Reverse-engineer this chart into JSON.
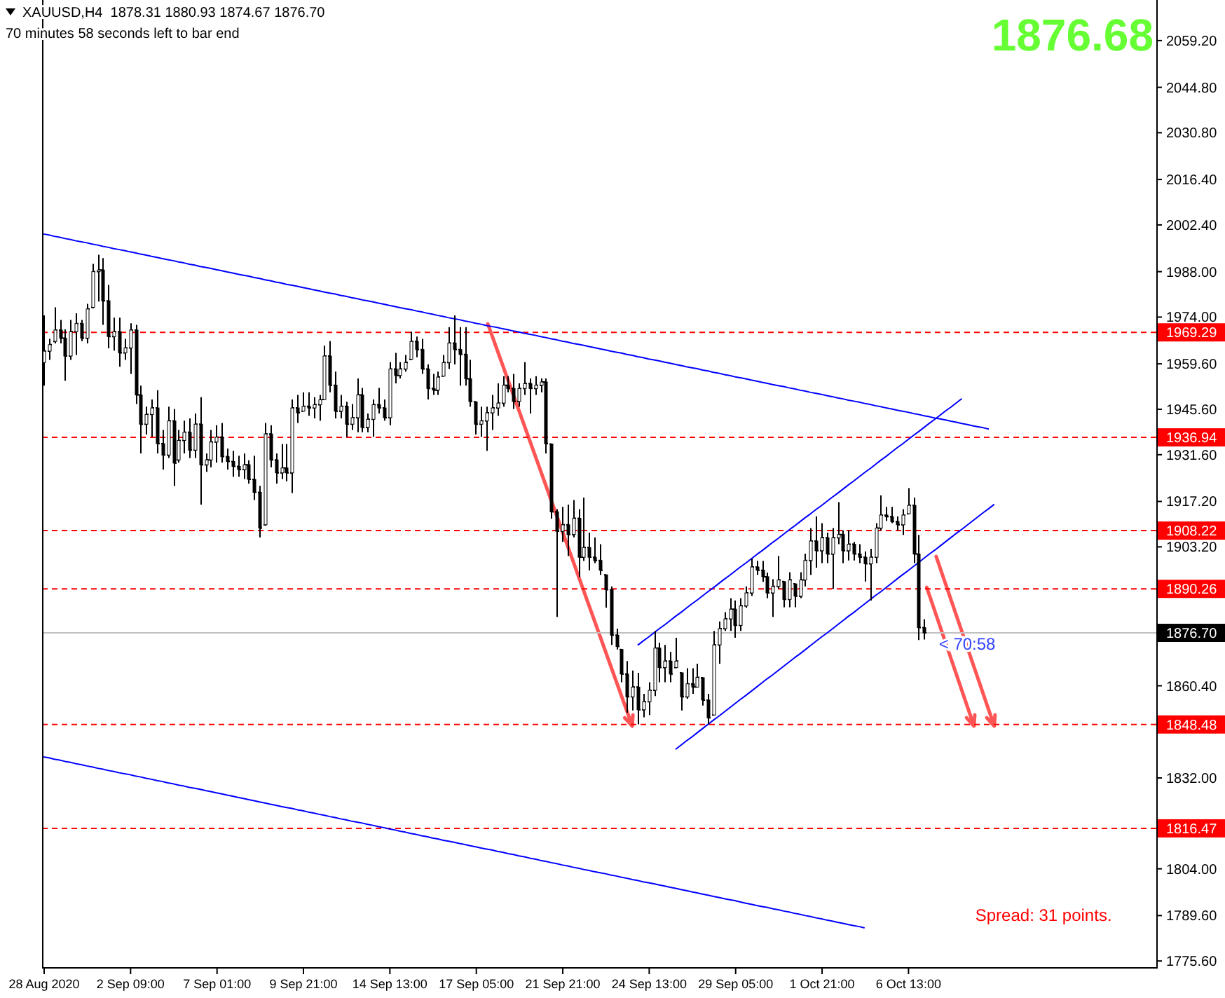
{
  "chart_data": {
    "type": "candlestick",
    "title": "XAUUSD,H4  1878.31 1880.93 1874.67 1876.70",
    "subtitle": "70 minutes 58 seconds left to bar end",
    "color": "#000000",
    "categories": [
      "28 Aug 2020",
      null,
      null,
      null,
      null,
      null,
      null,
      null,
      null,
      null,
      null,
      null,
      null,
      null,
      null,
      null,
      "2 Sep 09:00",
      null,
      null,
      null,
      null,
      null,
      null,
      null,
      null,
      null,
      null,
      null,
      null,
      null,
      null,
      null,
      "7 Sep 01:00",
      null,
      null,
      null,
      null,
      null,
      null,
      null,
      null,
      null,
      null,
      null,
      null,
      null,
      null,
      null,
      "9 Sep 21:00",
      null,
      null,
      null,
      null,
      null,
      null,
      null,
      null,
      null,
      null,
      null,
      null,
      null,
      null,
      null,
      "14 Sep 13:00",
      null,
      null,
      null,
      null,
      null,
      null,
      null,
      null,
      null,
      null,
      null,
      null,
      null,
      null,
      null,
      "17 Sep 05:00",
      null,
      null,
      null,
      null,
      null,
      null,
      null,
      null,
      null,
      null,
      null,
      null,
      null,
      null,
      null,
      "21 Sep 21:00",
      null,
      null,
      null,
      null,
      null,
      null,
      null,
      null,
      null,
      null,
      null,
      null,
      null,
      null,
      null,
      "24 Sep 13:00",
      null,
      null,
      null,
      null,
      null,
      null,
      null,
      null,
      null,
      null,
      null,
      null,
      null,
      null,
      null,
      "29 Sep 05:00",
      null,
      null,
      null,
      null,
      null,
      null,
      null,
      null,
      null,
      null,
      null,
      null,
      null,
      null,
      null,
      "1 Oct 21:00",
      null,
      null,
      null,
      null,
      null,
      null,
      null,
      null,
      null,
      null,
      null,
      null,
      null,
      null,
      null,
      "6 Oct 13:00",
      null,
      null,
      null,
      null,
      null,
      null,
      null,
      null,
      null,
      null,
      null,
      null,
      null,
      null,
      null,
      null,
      null,
      null,
      null,
      null,
      null,
      null,
      null,
      null,
      null,
      null,
      null,
      null,
      null,
      null,
      null,
      null,
      null,
      null,
      null,
      null,
      null,
      null,
      null,
      null,
      null,
      null,
      null,
      null,
      null,
      null
    ],
    "ohlc": [
      [
        1960,
        1974.5,
        1952.9,
        1963.5
      ],
      [
        1963.5,
        1967.3,
        1960.8,
        1965.5
      ],
      [
        1966.5,
        1977,
        1965.9,
        1970
      ],
      [
        1970,
        1973.1,
        1965.9,
        1967.5
      ],
      [
        1967.5,
        1970.2,
        1954.4,
        1962
      ],
      [
        1962,
        1973.1,
        1960.8,
        1969.5
      ],
      [
        1969.5,
        1975.2,
        1962.3,
        1972
      ],
      [
        1972,
        1973.1,
        1966.6,
        1967.5
      ],
      [
        1967.5,
        1978.1,
        1965.9,
        1976.5
      ],
      [
        1977,
        1990.4,
        1976.7,
        1988
      ],
      [
        1988,
        1993.2,
        1978.8,
        1988.5
      ],
      [
        1988.5,
        1992.2,
        1971.6,
        1979
      ],
      [
        1979,
        1983.9,
        1964.4,
        1968
      ],
      [
        1968,
        1973.8,
        1963.7,
        1969.5
      ],
      [
        1969.5,
        1973.8,
        1958.7,
        1963
      ],
      [
        1963,
        1967.3,
        1960.8,
        1964.5
      ],
      [
        1964.5,
        1972.1,
        1956.5,
        1970
      ],
      [
        1970,
        1971.6,
        1947.2,
        1950
      ],
      [
        1950,
        1952.9,
        1932,
        1941
      ],
      [
        1941,
        1946.4,
        1937.8,
        1944
      ],
      [
        1944,
        1948.6,
        1937.1,
        1946
      ],
      [
        1946,
        1951.5,
        1932,
        1935
      ],
      [
        1935,
        1939.2,
        1927,
        1931.5
      ],
      [
        1931.5,
        1946.4,
        1930.6,
        1942
      ],
      [
        1942,
        1945.7,
        1922,
        1929
      ],
      [
        1930,
        1939.2,
        1929.2,
        1936
      ],
      [
        1936,
        1942.1,
        1932,
        1938.5
      ],
      [
        1938.5,
        1942.8,
        1930.6,
        1933
      ],
      [
        1933,
        1944.3,
        1930.6,
        1941
      ],
      [
        1941,
        1949.3,
        1916.2,
        1928.5
      ],
      [
        1928.5,
        1932,
        1926.3,
        1930
      ],
      [
        1930,
        1939.2,
        1927.7,
        1935.5
      ],
      [
        1935.5,
        1940.7,
        1929.2,
        1937
      ],
      [
        1937,
        1941.4,
        1929.2,
        1931
      ],
      [
        1931,
        1933.5,
        1927,
        1929.5
      ],
      [
        1929.5,
        1932.8,
        1924.8,
        1928
      ],
      [
        1928,
        1931.3,
        1924.8,
        1927
      ],
      [
        1927,
        1932,
        1924.1,
        1928.5
      ],
      [
        1928.5,
        1929.9,
        1922.7,
        1924
      ],
      [
        1924,
        1931.3,
        1917.6,
        1920
      ],
      [
        1920,
        1922,
        1906.1,
        1909
      ],
      [
        1910,
        1941.4,
        1909.7,
        1938
      ],
      [
        1938,
        1940.7,
        1927.7,
        1930
      ],
      [
        1930,
        1932,
        1922.7,
        1926
      ],
      [
        1926,
        1934.9,
        1924.1,
        1927.5
      ],
      [
        1927.5,
        1934.9,
        1923.4,
        1926
      ],
      [
        1926,
        1948.6,
        1919.8,
        1946
      ],
      [
        1946,
        1950,
        1941.4,
        1944.5
      ],
      [
        1945,
        1950.8,
        1945,
        1946.5
      ],
      [
        1946.5,
        1950.8,
        1943.6,
        1946
      ],
      [
        1946,
        1949.3,
        1942.8,
        1947
      ],
      [
        1947,
        1950,
        1942.1,
        1948.5
      ],
      [
        1948.6,
        1965.2,
        1948.6,
        1962
      ],
      [
        1962,
        1966.6,
        1950.8,
        1953
      ],
      [
        1953,
        1957.2,
        1942.8,
        1945
      ],
      [
        1945,
        1950,
        1942.8,
        1946.5
      ],
      [
        1946.5,
        1947.9,
        1937.1,
        1941
      ],
      [
        1941,
        1947.2,
        1939.2,
        1943
      ],
      [
        1943,
        1955.1,
        1938.5,
        1950
      ],
      [
        1950,
        1952.2,
        1938.5,
        1940
      ],
      [
        1940,
        1944.3,
        1938.5,
        1942.5
      ],
      [
        1942.5,
        1948.6,
        1937.1,
        1947
      ],
      [
        1947,
        1952.2,
        1944.3,
        1946
      ],
      [
        1946,
        1948.6,
        1942.1,
        1943
      ],
      [
        1943,
        1960.1,
        1940.7,
        1958
      ],
      [
        1958,
        1963,
        1953.6,
        1956
      ],
      [
        1956,
        1960.1,
        1955.1,
        1958
      ],
      [
        1958,
        1962.3,
        1957.2,
        1960
      ],
      [
        1961,
        1969.5,
        1960.8,
        1966.5
      ],
      [
        1966.5,
        1968,
        1961.6,
        1964
      ],
      [
        1964,
        1967.3,
        1956.5,
        1958
      ],
      [
        1958,
        1959.4,
        1948.6,
        1952
      ],
      [
        1952,
        1956.5,
        1950,
        1951.5
      ],
      [
        1951.5,
        1957.2,
        1950,
        1955.5
      ],
      [
        1955.8,
        1962.3,
        1955.8,
        1960
      ],
      [
        1960,
        1970.9,
        1958,
        1966
      ],
      [
        1966,
        1974.5,
        1959.4,
        1964
      ],
      [
        1964,
        1970.9,
        1952.9,
        1962.5
      ],
      [
        1962.5,
        1970.9,
        1952.9,
        1955
      ],
      [
        1955,
        1960.8,
        1946.4,
        1948
      ],
      [
        1947.9,
        1947.9,
        1937.8,
        1941
      ],
      [
        1941,
        1946.4,
        1937.1,
        1942
      ],
      [
        1942,
        1946.4,
        1932.8,
        1944.5
      ],
      [
        1944.5,
        1950,
        1939.2,
        1946
      ],
      [
        1946,
        1953.6,
        1943.6,
        1947.5
      ],
      [
        1947.5,
        1955.8,
        1946.4,
        1953
      ],
      [
        1953,
        1955.8,
        1950.8,
        1952
      ],
      [
        1952,
        1956.5,
        1945.7,
        1948
      ],
      [
        1948,
        1953.6,
        1946.4,
        1952
      ],
      [
        1952,
        1960.1,
        1950,
        1953.5
      ],
      [
        1953.5,
        1955.1,
        1944.3,
        1952
      ],
      [
        1952,
        1955.8,
        1950,
        1953
      ],
      [
        1953,
        1955.1,
        1950.8,
        1954
      ],
      [
        1954,
        1955.1,
        1932,
        1935
      ],
      [
        1934.9,
        1934.9,
        1911.9,
        1914
      ],
      [
        1914,
        1914.8,
        1881.6,
        1908
      ],
      [
        1908,
        1915.5,
        1904.7,
        1910
      ],
      [
        1910,
        1916.2,
        1900.4,
        1907
      ],
      [
        1907,
        1917.6,
        1906.1,
        1912
      ],
      [
        1912,
        1914.8,
        1893.9,
        1900
      ],
      [
        1900,
        1918.4,
        1898.9,
        1903
      ],
      [
        1903,
        1907.6,
        1896,
        1900
      ],
      [
        1900,
        1906.1,
        1898.2,
        1899
      ],
      [
        1899,
        1904,
        1894.6,
        1896
      ],
      [
        1894.6,
        1894.6,
        1884.5,
        1890
      ],
      [
        1890,
        1891,
        1873,
        1876
      ],
      [
        1876,
        1878,
        1871.6,
        1872.5
      ],
      [
        1871.6,
        1871.6,
        1861.5,
        1864
      ],
      [
        1864,
        1868,
        1852.1,
        1857
      ],
      [
        1857,
        1865.1,
        1852.8,
        1860
      ],
      [
        1860,
        1864.4,
        1848.5,
        1853
      ],
      [
        1853,
        1857.9,
        1850.7,
        1855.5
      ],
      [
        1855.5,
        1861.5,
        1851.4,
        1859
      ],
      [
        1859,
        1877.3,
        1857.2,
        1872
      ],
      [
        1872,
        1873.7,
        1861.5,
        1866
      ],
      [
        1866,
        1873,
        1861.5,
        1868
      ],
      [
        1868,
        1870.8,
        1861.5,
        1864
      ],
      [
        1866,
        1875.2,
        1865.8,
        1868
      ],
      [
        1864.4,
        1864.4,
        1852.8,
        1857
      ],
      [
        1857,
        1865.8,
        1856.4,
        1861
      ],
      [
        1861,
        1865.8,
        1857.9,
        1860
      ],
      [
        1860,
        1867.2,
        1860,
        1863
      ],
      [
        1862.9,
        1862.9,
        1854.3,
        1856
      ],
      [
        1856,
        1857.9,
        1848.5,
        1850.5
      ],
      [
        1851.4,
        1877.3,
        1851.4,
        1873
      ],
      [
        1873,
        1880.2,
        1867.2,
        1878
      ],
      [
        1878,
        1883.1,
        1877.3,
        1881
      ],
      [
        1881,
        1887.4,
        1877.3,
        1884
      ],
      [
        1884,
        1886.7,
        1875.2,
        1879
      ],
      [
        1879,
        1887.4,
        1877.3,
        1885
      ],
      [
        1885,
        1891,
        1884.5,
        1889
      ],
      [
        1889,
        1899.6,
        1888.1,
        1897
      ],
      [
        1897,
        1898.9,
        1894.6,
        1896
      ],
      [
        1896,
        1898.9,
        1892.4,
        1894
      ],
      [
        1894,
        1895.3,
        1887.4,
        1889
      ],
      [
        1889,
        1893.2,
        1881.6,
        1891
      ],
      [
        1891,
        1900.4,
        1890.3,
        1893
      ],
      [
        1892.5,
        1892.5,
        1884.6,
        1887
      ],
      [
        1887,
        1895.4,
        1884.6,
        1893
      ],
      [
        1891.8,
        1891.8,
        1884.6,
        1888
      ],
      [
        1888,
        1895.4,
        1887.4,
        1893
      ],
      [
        1893,
        1901.1,
        1891,
        1899
      ],
      [
        1899,
        1909,
        1894.6,
        1905
      ],
      [
        1905,
        1912.6,
        1896.8,
        1902
      ],
      [
        1902,
        1910.5,
        1898.2,
        1906
      ],
      [
        1906,
        1907.6,
        1898.2,
        1901
      ],
      [
        1901,
        1909,
        1890.3,
        1906
      ],
      [
        1906,
        1917,
        1904,
        1907
      ],
      [
        1907,
        1908.3,
        1898.2,
        1902
      ],
      [
        1902,
        1908.3,
        1899,
        1904
      ],
      [
        1904,
        1904.7,
        1899,
        1901
      ],
      [
        1901,
        1904,
        1898.2,
        1900
      ],
      [
        1900,
        1901.8,
        1892.5,
        1898
      ],
      [
        1898,
        1902.6,
        1886.7,
        1900
      ],
      [
        1900,
        1910.5,
        1898.2,
        1909
      ],
      [
        1909,
        1919.1,
        1908.3,
        1913
      ],
      [
        1913,
        1915.5,
        1911.2,
        1912.5
      ],
      [
        1912.5,
        1915.5,
        1910.5,
        1911
      ],
      [
        1911,
        1912.6,
        1908.3,
        1910
      ],
      [
        1910,
        1914.8,
        1906.9,
        1913
      ],
      [
        1913.4,
        1921.3,
        1913.4,
        1916
      ],
      [
        1916,
        1918.4,
        1898.2,
        1901
      ],
      [
        1901,
        1906.9,
        1874.5,
        1878.3
      ],
      [
        1878.31,
        1880.93,
        1874.67,
        1876.7
      ],
      null,
      null,
      null,
      null,
      null,
      null,
      null,
      null,
      null,
      null,
      null,
      null,
      null,
      null,
      null,
      null,
      null,
      null,
      null,
      null,
      null,
      null,
      null,
      null,
      null,
      null,
      null,
      null,
      null,
      null,
      null,
      null,
      null,
      null,
      null,
      null,
      null,
      null,
      null,
      null,
      null,
      null,
      null
    ],
    "series": [
      {
        "type": "line",
        "color": "#0000ff",
        "values": [
          1999.6,
          1999.3,
          1998.9,
          1998.6,
          1998.2,
          1997.9,
          1997.5,
          1997.2,
          1996.9,
          1996.5,
          1996.2,
          1995.8,
          1995.5,
          1995.1,
          1994.8,
          1994.5,
          1994.1,
          1993.8,
          1993.4,
          1993.1,
          1992.7,
          1992.4,
          1992.0,
          1991.7,
          1991.4,
          1991.0,
          1990.7,
          1990.3,
          1990.0,
          1989.6,
          1989.3,
          1989.0,
          1988.6,
          1988.3,
          1987.9,
          1987.6,
          1987.2,
          1986.9,
          1986.6,
          1986.2,
          1985.9,
          1985.5,
          1985.2,
          1984.8,
          1984.5,
          1984.1,
          1983.8,
          1983.5,
          1983.1,
          1982.8,
          1982.4,
          1982.1,
          1981.7,
          1981.4,
          1981.1,
          1980.7,
          1980.4,
          1980.0,
          1979.7,
          1979.3,
          1979.0,
          1978.7,
          1978.3,
          1978.0,
          1977.6,
          1977.3,
          1976.9,
          1976.6,
          1976.3,
          1975.9,
          1975.6,
          1975.2,
          1974.9,
          1974.5,
          1974.2,
          1973.8,
          1973.5,
          1973.2,
          1972.8,
          1972.5,
          1972.1,
          1971.8,
          1971.4,
          1971.1,
          1970.8,
          1970.4,
          1970.1,
          1969.7,
          1969.4,
          1969.0,
          1968.7,
          1968.4,
          1968.0,
          1967.7,
          1967.3,
          1967.0,
          1966.6,
          1966.3,
          1965.9,
          1965.6,
          1965.3,
          1964.9,
          1964.6,
          1964.2,
          1963.9,
          1963.5,
          1963.2,
          1962.9,
          1962.5,
          1962.2,
          1961.8,
          1961.5,
          1961.1,
          1960.8,
          1960.5,
          1960.1,
          1959.8,
          1959.4,
          1959.1,
          1958.7,
          1958.4,
          1958.1,
          1957.7,
          1957.4,
          1957.0,
          1956.7,
          1956.3,
          1956.0,
          1955.6,
          1955.3,
          1955.0,
          1954.6,
          1954.3,
          1953.9,
          1953.6,
          1953.2,
          1952.9,
          1952.6,
          1952.2,
          1951.9,
          1951.5,
          1951.2,
          1950.8,
          1950.5,
          1950.2,
          1949.8,
          1949.5,
          1949.1,
          1948.8,
          1948.4,
          1948.1,
          1947.8,
          1947.4,
          1947.1,
          1946.7,
          1946.4,
          1946.0,
          1945.7,
          1945.3,
          1945.0,
          1944.7,
          1944.3,
          1944.0,
          1943.6,
          1943.3,
          1942.9,
          1942.6,
          1942.3,
          1941.9,
          1941.6,
          1941.2,
          1940.9,
          1940.5,
          1940.2,
          1939.9,
          1939.5,
          null,
          null,
          null,
          null,
          null,
          null,
          null,
          null,
          null,
          null,
          null,
          null,
          null,
          null,
          null,
          null,
          null,
          null,
          null,
          null,
          null,
          null,
          null,
          null,
          null,
          null,
          null,
          null,
          null,
          null,
          null
        ]
      },
      {
        "type": "line",
        "color": "#0000ff",
        "values": [
          1838.5,
          1838.2,
          1837.8,
          1837.5,
          1837.1,
          1836.8,
          1836.4,
          1836.1,
          1835.7,
          1835.4,
          1835.0,
          1834.7,
          1834.3,
          1834.0,
          1833.6,
          1833.3,
          1833.0,
          1832.6,
          1832.3,
          1831.9,
          1831.6,
          1831.2,
          1830.9,
          1830.5,
          1830.2,
          1829.8,
          1829.5,
          1829.1,
          1828.8,
          1828.5,
          1828.1,
          1827.8,
          1827.4,
          1827.1,
          1826.7,
          1826.4,
          1826.0,
          1825.7,
          1825.3,
          1825.0,
          1824.6,
          1824.3,
          1823.9,
          1823.6,
          1823.2,
          1822.9,
          1822.6,
          1822.2,
          1821.9,
          1821.5,
          1821.2,
          1820.8,
          1820.5,
          1820.1,
          1819.8,
          1819.4,
          1819.1,
          1818.7,
          1818.4,
          1818.1,
          1817.7,
          1817.4,
          1817.0,
          1816.7,
          1816.3,
          1816.0,
          1815.6,
          1815.3,
          1814.9,
          1814.6,
          1814.2,
          1813.9,
          1813.5,
          1813.2,
          1812.8,
          1812.5,
          1812.2,
          1811.8,
          1811.5,
          1811.1,
          1810.8,
          1810.4,
          1810.1,
          1809.8,
          1809.4,
          1809.1,
          1808.7,
          1808.4,
          1808.0,
          1807.7,
          1807.3,
          1807.0,
          1806.6,
          1806.3,
          1805.9,
          1805.6,
          1805.2,
          1804.9,
          1804.5,
          1804.2,
          1803.8,
          1803.5,
          1803.1,
          1802.8,
          1802.5,
          1802.1,
          1801.8,
          1801.4,
          1801.1,
          1800.7,
          1800.4,
          1800.0,
          1799.7,
          1799.4,
          1799.0,
          1798.7,
          1798.3,
          1798.0,
          1797.6,
          1797.3,
          1796.9,
          1796.6,
          1796.2,
          1795.9,
          1795.5,
          1795.2,
          1794.8,
          1794.5,
          1794.2,
          1793.8,
          1793.4,
          1793.1,
          1792.7,
          1792.4,
          1792.1,
          1791.7,
          1791.4,
          1791.0,
          1790.7,
          1790.3,
          1790.0,
          1789.6,
          1789.3,
          1788.9,
          1788.6,
          1788.2,
          1787.9,
          1787.5,
          1787.2,
          1786.8,
          1786.5,
          1786.2,
          1785.8,
          null,
          null,
          null,
          null,
          null,
          null,
          null,
          null,
          null,
          null,
          null,
          null,
          null,
          null,
          null,
          null,
          null,
          null,
          null,
          null,
          null,
          null,
          null,
          null,
          null,
          null,
          null,
          null,
          null,
          null,
          null,
          null,
          null,
          null,
          null,
          null,
          null,
          null,
          null,
          null,
          null,
          null,
          null,
          null,
          null,
          null,
          null,
          null,
          null,
          null,
          null,
          null,
          null,
          null
        ]
      },
      {
        "type": "line",
        "color": "#0000ff",
        "values": [
          null,
          null,
          null,
          null,
          null,
          null,
          null,
          null,
          null,
          null,
          null,
          null,
          null,
          null,
          null,
          null,
          null,
          null,
          null,
          null,
          null,
          null,
          null,
          null,
          null,
          null,
          null,
          null,
          null,
          null,
          null,
          null,
          null,
          null,
          null,
          null,
          null,
          null,
          null,
          null,
          null,
          null,
          null,
          null,
          null,
          null,
          null,
          null,
          null,
          null,
          null,
          null,
          null,
          null,
          null,
          null,
          null,
          null,
          null,
          null,
          null,
          null,
          null,
          null,
          null,
          null,
          null,
          null,
          null,
          null,
          null,
          null,
          null,
          null,
          null,
          null,
          null,
          null,
          null,
          null,
          null,
          null,
          null,
          null,
          null,
          null,
          null,
          null,
          null,
          null,
          null,
          null,
          null,
          null,
          null,
          null,
          null,
          null,
          null,
          null,
          null,
          null,
          null,
          null,
          null,
          null,
          null,
          null,
          null,
          null,
          1872.9,
          1874.2,
          1875.4,
          1876.7,
          1878.0,
          1879.2,
          1880.5,
          1881.8,
          1883.0,
          1884.3,
          1885.6,
          1886.8,
          1888.1,
          1889.4,
          1890.6,
          1891.9,
          1893.2,
          1894.4,
          1895.7,
          1897.0,
          1898.2,
          1899.5,
          1900.8,
          1902.0,
          1903.3,
          1904.6,
          1905.8,
          1907.1,
          1908.4,
          1909.6,
          1910.9,
          1912.2,
          1913.4,
          1914.7,
          1915.9,
          1917.2,
          1918.5,
          1919.7,
          1921.0,
          1922.3,
          1923.5,
          1924.8,
          1926.1,
          1927.3,
          1928.6,
          1929.9,
          1931.1,
          1932.4,
          1933.7,
          1934.9,
          1936.2,
          1937.5,
          1938.7,
          1940.0,
          1941.3,
          1942.5,
          1943.8,
          1945.1,
          1946.3,
          1947.6,
          1948.9,
          null,
          null,
          null,
          null,
          null,
          null,
          null,
          null,
          null,
          null,
          null,
          null,
          null,
          null,
          null,
          null,
          null,
          null,
          null,
          null,
          null,
          null,
          null,
          null,
          null,
          null,
          null,
          null,
          null,
          null,
          null,
          null,
          null,
          null,
          null,
          null
        ]
      },
      {
        "type": "line",
        "color": "#0000ff",
        "values": [
          null,
          null,
          null,
          null,
          null,
          null,
          null,
          null,
          null,
          null,
          null,
          null,
          null,
          null,
          null,
          null,
          null,
          null,
          null,
          null,
          null,
          null,
          null,
          null,
          null,
          null,
          null,
          null,
          null,
          null,
          null,
          null,
          null,
          null,
          null,
          null,
          null,
          null,
          null,
          null,
          null,
          null,
          null,
          null,
          null,
          null,
          null,
          null,
          null,
          null,
          null,
          null,
          null,
          null,
          null,
          null,
          null,
          null,
          null,
          null,
          null,
          null,
          null,
          null,
          null,
          null,
          null,
          null,
          null,
          null,
          null,
          null,
          null,
          null,
          null,
          null,
          null,
          null,
          null,
          null,
          null,
          null,
          null,
          null,
          null,
          null,
          null,
          null,
          null,
          null,
          null,
          null,
          null,
          null,
          null,
          null,
          null,
          null,
          null,
          null,
          null,
          null,
          null,
          null,
          null,
          null,
          null,
          null,
          null,
          null,
          null,
          null,
          null,
          null,
          null,
          null,
          null,
          1840.8,
          1842.1,
          1843.4,
          1844.6,
          1845.9,
          1847.2,
          1848.5,
          1849.8,
          1851.0,
          1852.3,
          1853.6,
          1854.9,
          1856.2,
          1857.4,
          1858.7,
          1860.0,
          1861.3,
          1862.6,
          1863.8,
          1865.1,
          1866.4,
          1867.7,
          1869.0,
          1870.2,
          1871.5,
          1872.8,
          1874.1,
          1875.4,
          1876.6,
          1877.9,
          1879.2,
          1880.5,
          1881.8,
          1883.0,
          1884.3,
          1885.6,
          1886.9,
          1888.2,
          1889.4,
          1890.7,
          1892.0,
          1893.3,
          1894.6,
          1895.8,
          1897.1,
          1898.4,
          1899.7,
          1901.0,
          1902.2,
          1903.5,
          1904.8,
          1906.1,
          1907.4,
          1908.6,
          1909.9,
          1911.2,
          1912.5,
          1913.8,
          1915.0,
          1916.3,
          null,
          null,
          null,
          null,
          null,
          null,
          null,
          null,
          null,
          null,
          null,
          null,
          null,
          null,
          null,
          null,
          null,
          null,
          null,
          null,
          null,
          null,
          null,
          null,
          null,
          null,
          null,
          null,
          null,
          null
        ]
      }
    ],
    "ylim": [
      1773.7,
      2071.7
    ],
    "yticks": [
      {
        "value": 2059.2,
        "label": "2059.20"
      },
      {
        "value": 2044.8,
        "label": "2044.80"
      },
      {
        "value": 2030.8,
        "label": "2030.80"
      },
      {
        "value": 2016.4,
        "label": "2016.40"
      },
      {
        "value": 2002.4,
        "label": "2002.40"
      },
      {
        "value": 1988,
        "label": "1988.00"
      },
      {
        "value": 1974,
        "label": "1974.00"
      },
      {
        "value": 1959.6,
        "label": "1959.60"
      },
      {
        "value": 1945.6,
        "label": "1945.60"
      },
      {
        "value": 1931.6,
        "label": "1931.60"
      },
      {
        "value": 1917.2,
        "label": "1917.20"
      },
      {
        "value": 1903.2,
        "label": "1903.20"
      },
      {
        "value": 1860.4,
        "label": "1860.40"
      },
      {
        "value": 1832,
        "label": "1832.00"
      },
      {
        "value": 1804,
        "label": "1804.00"
      },
      {
        "value": 1789.6,
        "label": "1789.60"
      },
      {
        "value": 1775.6,
        "label": "1775.60"
      }
    ],
    "ref_lines": [
      {
        "axis": "y",
        "value": 1969.29,
        "label": "1969.29",
        "color": "#ff0000",
        "line_style": "dashed"
      },
      {
        "axis": "y",
        "value": 1936.94,
        "label": "1936.94",
        "color": "#ff0000",
        "line_style": "dashed"
      },
      {
        "axis": "y",
        "value": 1908.22,
        "label": "1908.22",
        "color": "#ff0000",
        "line_style": "dashed"
      },
      {
        "axis": "y",
        "value": 1890.26,
        "label": "1890.26",
        "color": "#ff0000",
        "line_style": "dashed"
      },
      {
        "axis": "y",
        "value": 1876.7,
        "label": "1876.70",
        "color": "#c0c0c0",
        "line_style": "solid"
      },
      {
        "axis": "y",
        "value": 1848.48,
        "label": "1848.48",
        "color": "#ff0000",
        "line_style": "dashed"
      },
      {
        "axis": "y",
        "value": 1816.47,
        "label": "1816.47",
        "color": "#ff0000",
        "line_style": "dashed"
      }
    ],
    "annotations": [
      "1876.68",
      {
        "text": "< 70:58",
        "y": 1876.7
      },
      "Spread: 31 points."
    ]
  }
}
